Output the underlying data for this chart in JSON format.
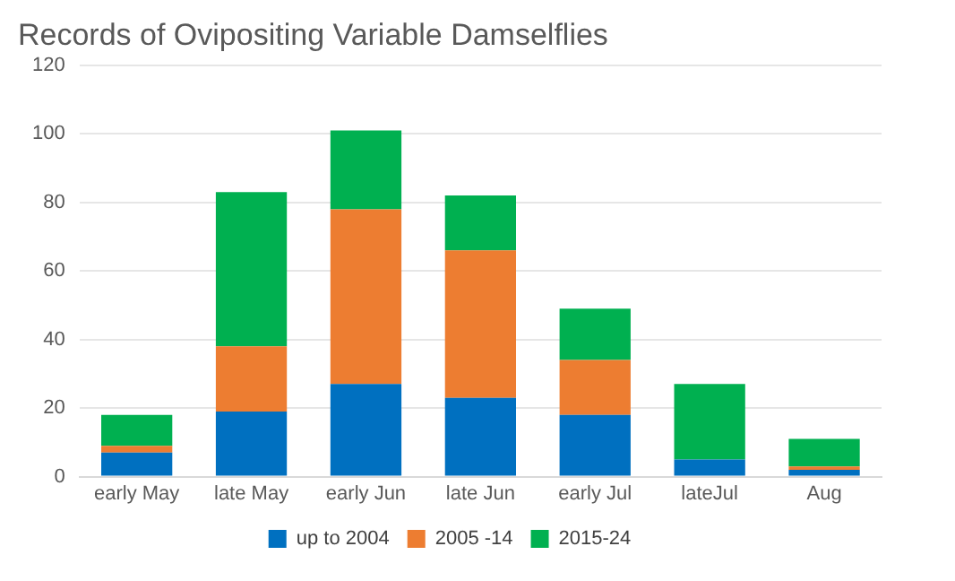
{
  "chart_data": {
    "type": "bar",
    "title": "Records of Ovipositing Variable Damselflies",
    "stacked": true,
    "categories": [
      "early May",
      "late May",
      "early Jun",
      "late Jun",
      "early Jul",
      "lateJul",
      "Aug"
    ],
    "series": [
      {
        "name": "up to 2004",
        "color": "#0070c0",
        "values": [
          7,
          19,
          27,
          23,
          18,
          5,
          2
        ]
      },
      {
        "name": "2005 -14",
        "color": "#ed7d31",
        "values": [
          2,
          19,
          51,
          43,
          16,
          0,
          1
        ]
      },
      {
        "name": "2015-24",
        "color": "#00b050",
        "values": [
          9,
          45,
          23,
          16,
          15,
          22,
          8
        ]
      }
    ],
    "ylim": [
      0,
      120
    ],
    "yticks": [
      0,
      20,
      40,
      60,
      80,
      100,
      120
    ],
    "grid": "y",
    "legend": "bottom"
  }
}
